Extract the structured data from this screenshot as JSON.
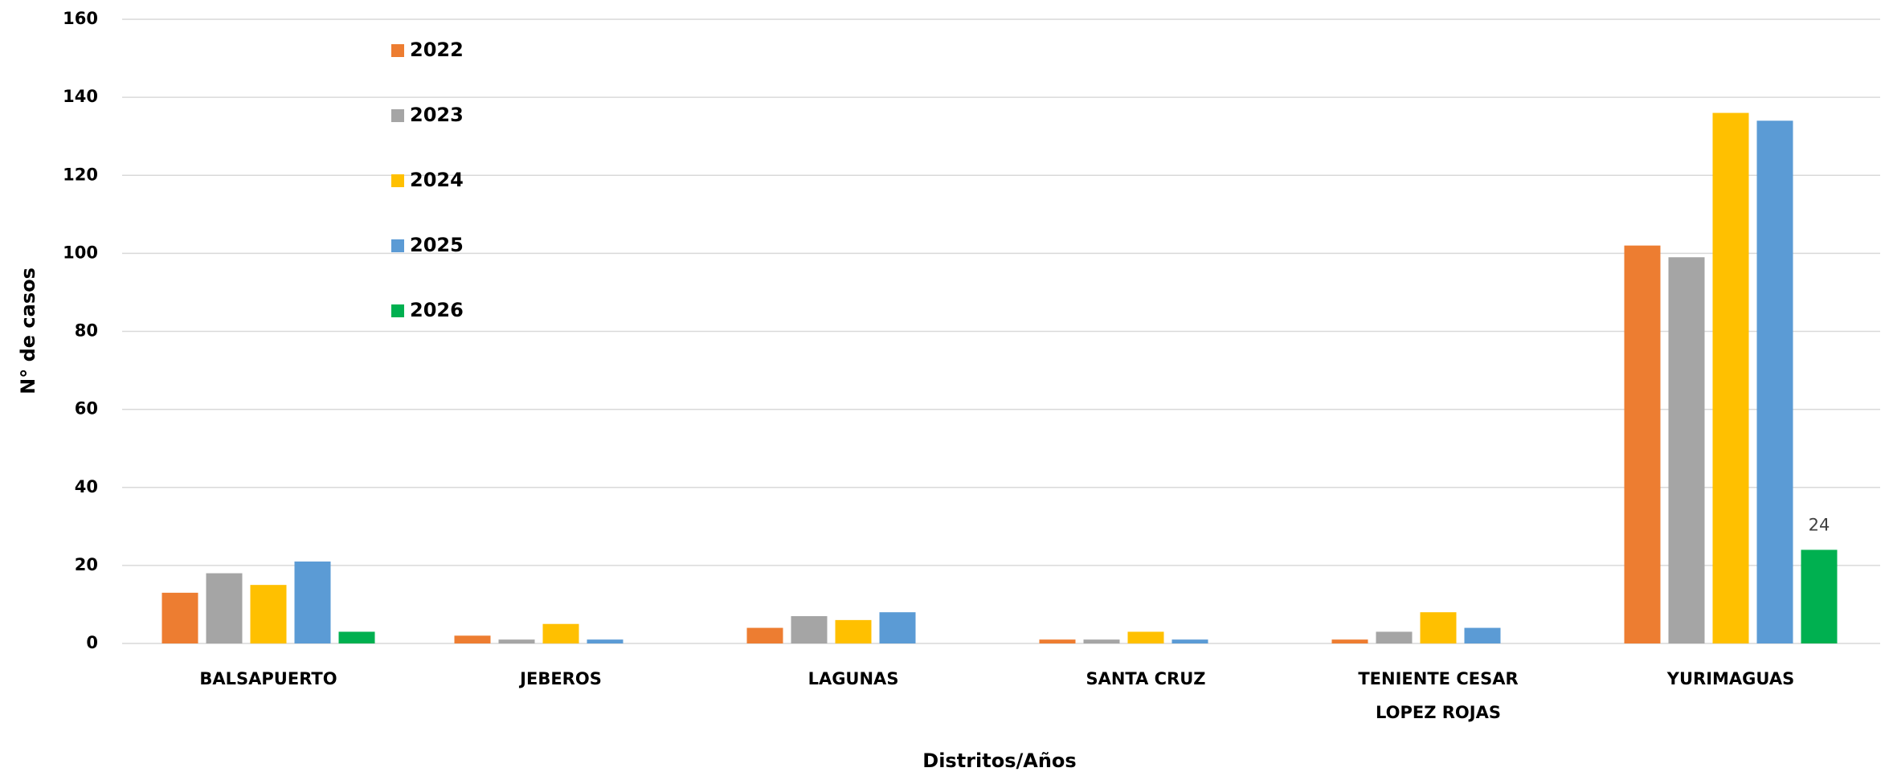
{
  "chart_data": {
    "type": "bar",
    "x_label": "Distritos/Años",
    "y_label": "N° de casos",
    "categories": [
      "BALSAPUERTO",
      "JEBEROS",
      "LAGUNAS",
      "SANTA CRUZ",
      "TENIENTE CESAR LOPEZ ROJAS",
      "YURIMAGUAS"
    ],
    "series": [
      {
        "name": "2022",
        "color": "#ed7d31",
        "values": [
          13,
          2,
          4,
          1,
          1,
          102
        ]
      },
      {
        "name": "2023",
        "color": "#a5a5a5",
        "values": [
          18,
          1,
          7,
          1,
          3,
          99
        ]
      },
      {
        "name": "2024",
        "color": "#ffc000",
        "values": [
          15,
          5,
          6,
          3,
          8,
          136
        ]
      },
      {
        "name": "2025",
        "color": "#5b9bd5",
        "values": [
          21,
          1,
          8,
          1,
          4,
          134
        ]
      },
      {
        "name": "2026",
        "color": "#00b050",
        "values": [
          3,
          0,
          0,
          0,
          0,
          24
        ],
        "value_labels": [
          null,
          null,
          null,
          null,
          null,
          "24"
        ]
      }
    ],
    "ylim": [
      0,
      160
    ],
    "yticks": [
      0,
      20,
      40,
      60,
      80,
      100,
      120,
      140,
      160
    ],
    "grid": true,
    "legend": "upper left"
  }
}
